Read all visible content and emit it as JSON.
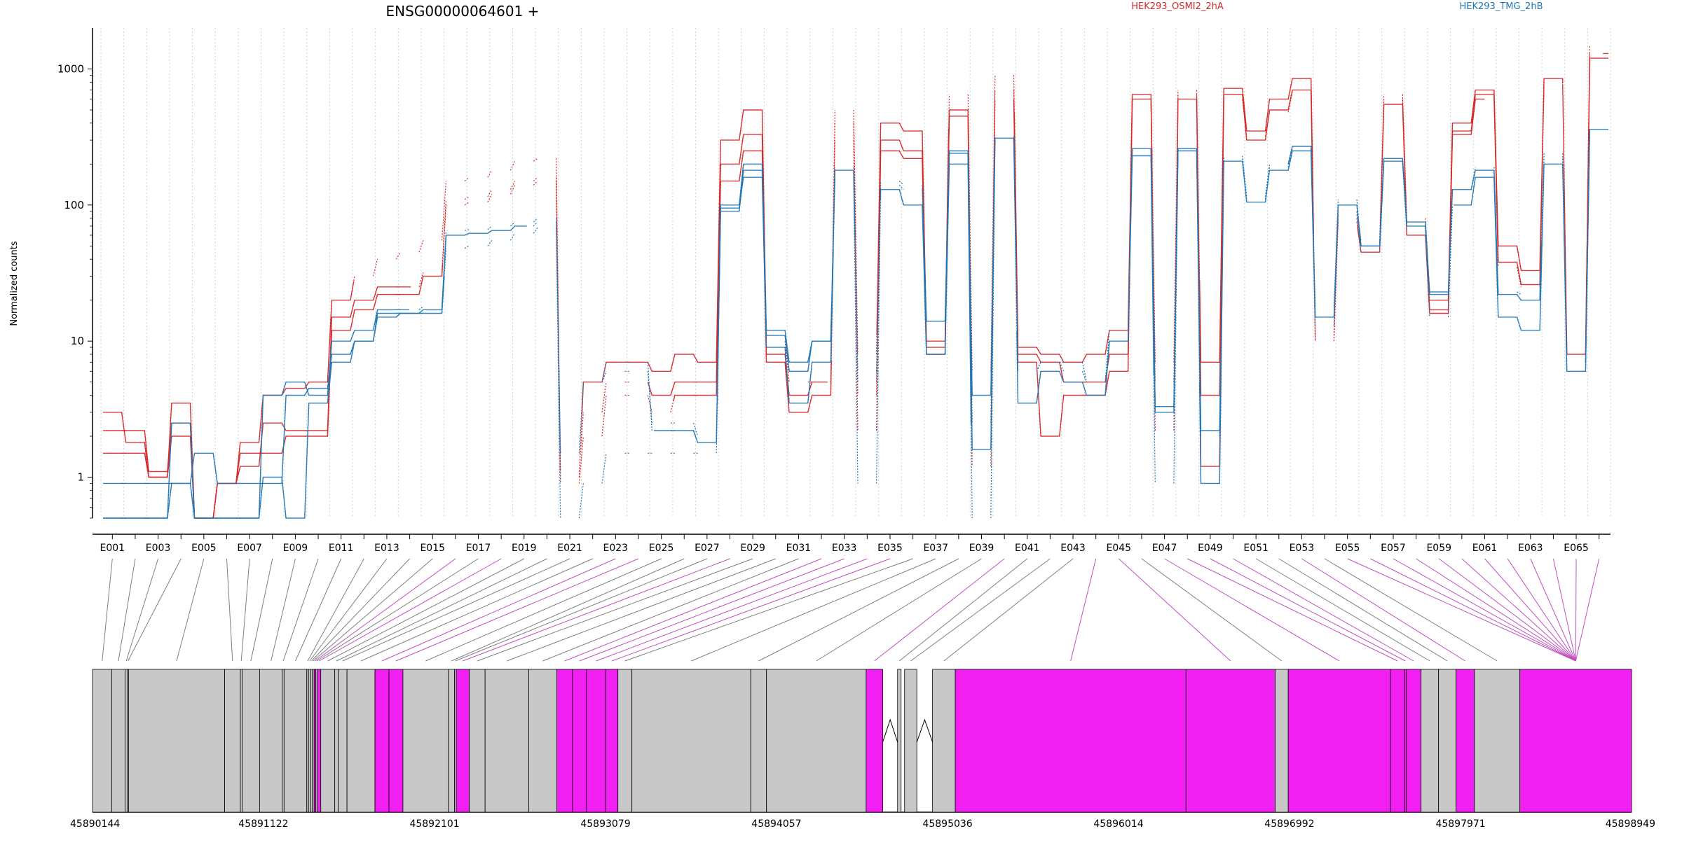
{
  "title": "ENSG00000064601 +",
  "legend": {
    "position": "top",
    "entries": [
      {
        "name": "HEK293_OSMI2_2hA",
        "color": "#d62728"
      },
      {
        "name": "HEK293_TMG_2hB",
        "color": "#1f77b4"
      }
    ]
  },
  "colors": {
    "grid": "#d0d0d0",
    "exon_fill": "#c8c8c8",
    "highlight_fill": "#f21ff2",
    "highlight_link": "#c050c0",
    "exon_link": "#808080"
  },
  "chart_data": {
    "type": "line",
    "title": "ENSG00000064601 +",
    "xlabel": "",
    "ylabel": "Normalized counts",
    "yscale": "log",
    "ylim": [
      0.5,
      2000
    ],
    "yticks": [
      1,
      10,
      100,
      1000
    ],
    "ytick_labels": [
      "1",
      "10",
      "100",
      "1000"
    ],
    "grid": "vertical",
    "categories": [
      "E001",
      "E002",
      "E003",
      "E004",
      "E005",
      "E006",
      "E007",
      "E008",
      "E009",
      "E010",
      "E011",
      "E012",
      "E013",
      "E014",
      "E015",
      "E016",
      "E017",
      "E018",
      "E019",
      "E020",
      "E021",
      "E022",
      "E023",
      "E024",
      "E025",
      "E026",
      "E027",
      "E028",
      "E029",
      "E030",
      "E031",
      "E032",
      "E033",
      "E034",
      "E035",
      "E036",
      "E037",
      "E038",
      "E039",
      "E040",
      "E041",
      "E042",
      "E043",
      "E044",
      "E045",
      "E046",
      "E047",
      "E048",
      "E049",
      "E050",
      "E051",
      "E052",
      "E053",
      "E054",
      "E055",
      "E056",
      "E057",
      "E058",
      "E059",
      "E060",
      "E061",
      "E062",
      "E063",
      "E064",
      "E065",
      "E066"
    ],
    "xtick_labels": [
      "E001",
      "E003",
      "E005",
      "E007",
      "E009",
      "E011",
      "E013",
      "E015",
      "E017",
      "E019",
      "E021",
      "E023",
      "E025",
      "E027",
      "E029",
      "E031",
      "E033",
      "E035",
      "E037",
      "E039",
      "E041",
      "E043",
      "E045",
      "E047",
      "E049",
      "E051",
      "E053",
      "E055",
      "E057",
      "E059",
      "E061",
      "E063",
      "E065"
    ],
    "series": [
      {
        "name": "HEK293_OSMI2_2hA",
        "color": "#d62728",
        "values": [
          3,
          1.8,
          1,
          3.5,
          0.5,
          0.9,
          1.8,
          4,
          4.5,
          5,
          20,
          30,
          40,
          45,
          55,
          150,
          160,
          180,
          210,
          220,
          1,
          5,
          7,
          7,
          6,
          8,
          7,
          300,
          500,
          10,
          5,
          5,
          500,
          8,
          400,
          350,
          10,
          650,
          6,
          900,
          9,
          8,
          7,
          8,
          12,
          650,
          7,
          700,
          7,
          720,
          350,
          600,
          850,
          11,
          90,
          55,
          650,
          80,
          20,
          400,
          700,
          50,
          33,
          850,
          9,
          1500
        ]
      },
      {
        "name": "HEK293_OSMI2_2hA",
        "color": "#d62728",
        "values": [
          2.2,
          2.2,
          1.1,
          2.5,
          0.5,
          0.9,
          1.2,
          2.5,
          2.2,
          2.2,
          15,
          20,
          25,
          25,
          32,
          110,
          115,
          130,
          150,
          160,
          1.1,
          3,
          5,
          5,
          4,
          5,
          5,
          200,
          330,
          8,
          4,
          5,
          400,
          4,
          300,
          250,
          9,
          500,
          2.5,
          700,
          8,
          7,
          5,
          5,
          8,
          600,
          5,
          650,
          4,
          650,
          300,
          500,
          700,
          10,
          80,
          50,
          600,
          70,
          17,
          350,
          650,
          38,
          26,
          800,
          8,
          1300
        ]
      },
      {
        "name": "HEK293_OSMI2_2hA",
        "color": "#d62728",
        "values": [
          1.5,
          1.5,
          1,
          2,
          0.5,
          0.9,
          1.5,
          1.5,
          2,
          2,
          12,
          17,
          22,
          22,
          30,
          100,
          105,
          120,
          140,
          150,
          0.9,
          2,
          4,
          4,
          3,
          4,
          4,
          150,
          250,
          7,
          3,
          4,
          300,
          2.2,
          250,
          220,
          8,
          450,
          1.2,
          600,
          7,
          2,
          4,
          4,
          6,
          550,
          2.2,
          600,
          1.2,
          600,
          320,
          480,
          680,
          10,
          75,
          45,
          550,
          60,
          16,
          330,
          600,
          35,
          25,
          750,
          8,
          1200
        ]
      },
      {
        "name": "HEK293_TMG_2hB",
        "color": "#1f77b4",
        "values": [
          0.9,
          0.9,
          0.9,
          0.9,
          1.5,
          0.9,
          0.9,
          0.9,
          4,
          4.5,
          8,
          10,
          15,
          16,
          17,
          60,
          62,
          65,
          70,
          75,
          1.5,
          5,
          6,
          6,
          2.5,
          2.5,
          2,
          90,
          180,
          11,
          6,
          10,
          180,
          5,
          140,
          130,
          14,
          240,
          4,
          310,
          6,
          7,
          6,
          5,
          10,
          250,
          3.3,
          250,
          2.2,
          220,
          110,
          190,
          260,
          18,
          110,
          50,
          220,
          70,
          23,
          130,
          180,
          22,
          20,
          240,
          6,
          350
        ]
      },
      {
        "name": "HEK293_TMG_2hB",
        "color": "#1f77b4",
        "values": [
          0.5,
          0.5,
          0.5,
          2.5,
          0.5,
          0.5,
          0.5,
          4,
          5,
          4,
          10,
          12,
          17,
          17,
          18,
          65,
          66,
          70,
          75,
          80,
          1.5,
          5,
          7,
          7,
          2.2,
          2.2,
          1.8,
          100,
          200,
          12,
          7,
          10,
          190,
          6,
          150,
          140,
          14,
          250,
          1.6,
          320,
          6,
          7,
          7,
          5,
          12,
          260,
          3,
          260,
          2,
          230,
          115,
          200,
          270,
          15,
          100,
          50,
          210,
          75,
          22,
          130,
          190,
          23,
          22,
          220,
          7,
          360
        ]
      },
      {
        "name": "HEK293_TMG_2hB",
        "color": "#1f77b4",
        "values": [
          0.5,
          0.5,
          0.5,
          0.9,
          0.5,
          0.5,
          0.5,
          1,
          0.5,
          3.5,
          7,
          10,
          16,
          16,
          16,
          48,
          50,
          55,
          62,
          68,
          0.5,
          0.9,
          1.5,
          1.5,
          1.5,
          1.5,
          1.5,
          95,
          160,
          9,
          3.5,
          7,
          160,
          0.9,
          130,
          100,
          8,
          200,
          0.5,
          300,
          3.5,
          6,
          5,
          4,
          10,
          230,
          0.9,
          230,
          0.9,
          210,
          105,
          180,
          250,
          13,
          85,
          45,
          200,
          65,
          15,
          100,
          160,
          15,
          12,
          200,
          6,
          340
        ]
      }
    ]
  },
  "gene_model": {
    "start_label": "45890144",
    "axis_labels": [
      "45890144",
      "45891122",
      "45892101",
      "45893079",
      "45894057",
      "45895036",
      "45896014",
      "45896992",
      "45897971",
      "45898949"
    ],
    "axis_values": [
      45890144,
      45891122,
      45892101,
      45893079,
      45894057,
      45895036,
      45896014,
      45896992,
      45897971,
      45898949
    ],
    "range": [
      45890144,
      45898949
    ],
    "exon_map": [
      {
        "start": 45890144,
        "end": 45890254,
        "highlight": false
      },
      {
        "start": 45890254,
        "end": 45890330,
        "highlight": false
      },
      {
        "start": 45890330,
        "end": 45890344,
        "highlight": false
      },
      {
        "start": 45890344,
        "end": 45890350,
        "highlight": false
      },
      {
        "start": 45890350,
        "end": 45890900,
        "highlight": false
      },
      {
        "start": 45890900,
        "end": 45890990,
        "highlight": false
      },
      {
        "start": 45890990,
        "end": 45891000,
        "highlight": false
      },
      {
        "start": 45891000,
        "end": 45891100,
        "highlight": false
      },
      {
        "start": 45891100,
        "end": 45891230,
        "highlight": false
      },
      {
        "start": 45891230,
        "end": 45891240,
        "highlight": false
      },
      {
        "start": 45891240,
        "end": 45891370,
        "highlight": false
      },
      {
        "start": 45891370,
        "end": 45891380,
        "highlight": false
      },
      {
        "start": 45891380,
        "end": 45891392,
        "highlight": false
      },
      {
        "start": 45891392,
        "end": 45891402,
        "highlight": false
      },
      {
        "start": 45891402,
        "end": 45891412,
        "highlight": false
      },
      {
        "start": 45891412,
        "end": 45891422,
        "highlight": true
      },
      {
        "start": 45891422,
        "end": 45891432,
        "highlight": false
      },
      {
        "start": 45891432,
        "end": 45891450,
        "highlight": true
      },
      {
        "start": 45891450,
        "end": 45891530,
        "highlight": false
      },
      {
        "start": 45891530,
        "end": 45891550,
        "highlight": false
      },
      {
        "start": 45891550,
        "end": 45891600,
        "highlight": false
      },
      {
        "start": 45891600,
        "end": 45891760,
        "highlight": false
      },
      {
        "start": 45891760,
        "end": 45891840,
        "highlight": true
      },
      {
        "start": 45891840,
        "end": 45891920,
        "highlight": true
      },
      {
        "start": 45891920,
        "end": 45892180,
        "highlight": false
      },
      {
        "start": 45892180,
        "end": 45892215,
        "highlight": false
      },
      {
        "start": 45892215,
        "end": 45892225,
        "highlight": false
      },
      {
        "start": 45892225,
        "end": 45892300,
        "highlight": true
      },
      {
        "start": 45892300,
        "end": 45892390,
        "highlight": false
      },
      {
        "start": 45892390,
        "end": 45892640,
        "highlight": false
      },
      {
        "start": 45892640,
        "end": 45892800,
        "highlight": false
      },
      {
        "start": 45892800,
        "end": 45892890,
        "highlight": true
      },
      {
        "start": 45892890,
        "end": 45892970,
        "highlight": true
      },
      {
        "start": 45892970,
        "end": 45893080,
        "highlight": true
      },
      {
        "start": 45893080,
        "end": 45893150,
        "highlight": true
      },
      {
        "start": 45893150,
        "end": 45893230,
        "highlight": false
      },
      {
        "start": 45893230,
        "end": 45893910,
        "highlight": false
      },
      {
        "start": 45893910,
        "end": 45894000,
        "highlight": false
      },
      {
        "start": 45894000,
        "end": 45894570,
        "highlight": false
      },
      {
        "start": 45894570,
        "end": 45894665,
        "highlight": true
      },
      {
        "start": 45894750,
        "end": 45894770,
        "highlight": false
      },
      {
        "start": 45894790,
        "end": 45894860,
        "highlight": false
      },
      {
        "start": 45894950,
        "end": 45895080,
        "highlight": false
      },
      {
        "start": 45895080,
        "end": 45896400,
        "highlight": true
      },
      {
        "start": 45896400,
        "end": 45896910,
        "highlight": true
      },
      {
        "start": 45896910,
        "end": 45896985,
        "highlight": false
      },
      {
        "start": 45896985,
        "end": 45897570,
        "highlight": true
      },
      {
        "start": 45897570,
        "end": 45897650,
        "highlight": true
      },
      {
        "start": 45897650,
        "end": 45897660,
        "highlight": true
      },
      {
        "start": 45897660,
        "end": 45897745,
        "highlight": true
      },
      {
        "start": 45897745,
        "end": 45897845,
        "highlight": false
      },
      {
        "start": 45897845,
        "end": 45897945,
        "highlight": false
      },
      {
        "start": 45897945,
        "end": 45898050,
        "highlight": true
      },
      {
        "start": 45898050,
        "end": 45898310,
        "highlight": false
      },
      {
        "start": 45898310,
        "end": 45898949,
        "highlight": true
      }
    ]
  }
}
